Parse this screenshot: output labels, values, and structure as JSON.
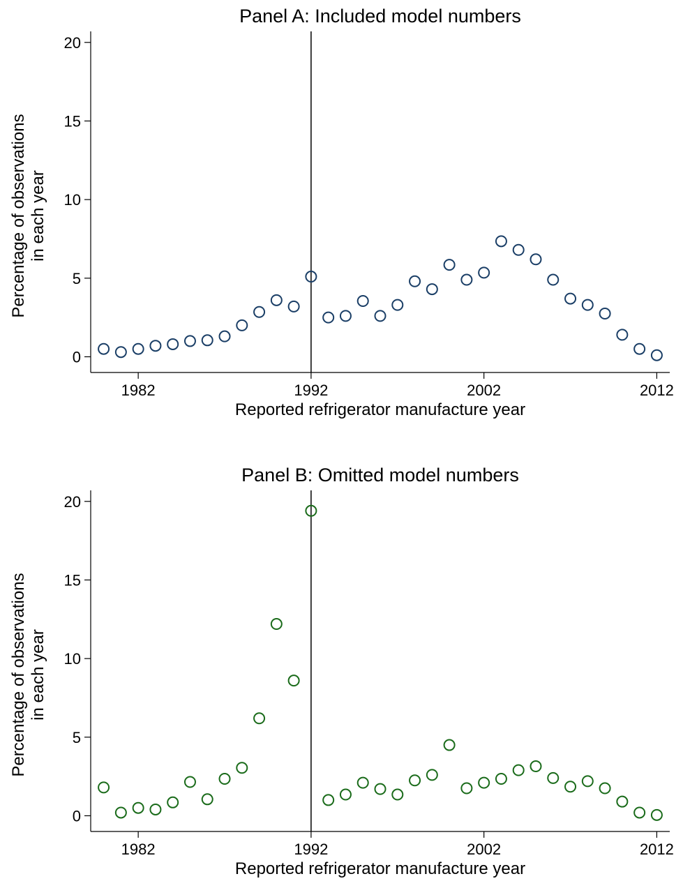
{
  "chart_data": [
    {
      "type": "scatter",
      "title": "Panel A: Included model numbers",
      "xlabel": "Reported refrigerator manufacture year",
      "ylabel_lines": [
        "Percentage of observations",
        "in each year"
      ],
      "xlim": [
        1979.25,
        2012.75
      ],
      "ylim": [
        -1,
        20.7
      ],
      "xticks": [
        1982,
        1992,
        2002,
        2012
      ],
      "xtick_labels": [
        "1982",
        "1992",
        "2002",
        "2012"
      ],
      "yticks": [
        0,
        5,
        10,
        15,
        20
      ],
      "ytick_labels": [
        "0",
        "5",
        "10",
        "15",
        "20"
      ],
      "vline": 1992,
      "grid": false,
      "marker_color": "#1a3e66",
      "x": [
        1980,
        1981,
        1982,
        1983,
        1984,
        1985,
        1986,
        1987,
        1988,
        1989,
        1990,
        1991,
        1992,
        1993,
        1994,
        1995,
        1996,
        1997,
        1998,
        1999,
        2000,
        2001,
        2002,
        2003,
        2004,
        2005,
        2006,
        2007,
        2008,
        2009,
        2010,
        2011,
        2012
      ],
      "y": [
        0.5,
        0.3,
        0.5,
        0.7,
        0.8,
        1.0,
        1.05,
        1.3,
        2.0,
        2.85,
        3.6,
        3.2,
        5.1,
        2.5,
        2.6,
        3.55,
        2.6,
        3.3,
        4.8,
        4.3,
        5.85,
        4.9,
        5.35,
        7.35,
        6.8,
        6.2,
        4.9,
        3.7,
        3.3,
        2.75,
        1.4,
        0.5,
        0.1
      ]
    },
    {
      "type": "scatter",
      "title": "Panel B: Omitted model numbers",
      "xlabel": "Reported refrigerator manufacture year",
      "ylabel_lines": [
        "Percentage of observations",
        "in each year"
      ],
      "xlim": [
        1979.25,
        2012.75
      ],
      "ylim": [
        -1,
        20.7
      ],
      "xticks": [
        1982,
        1992,
        2002,
        2012
      ],
      "xtick_labels": [
        "1982",
        "1992",
        "2002",
        "2012"
      ],
      "yticks": [
        0,
        5,
        10,
        15,
        20
      ],
      "ytick_labels": [
        "0",
        "5",
        "10",
        "15",
        "20"
      ],
      "vline": 1992,
      "grid": false,
      "marker_color": "#1a6b1a",
      "x": [
        1980,
        1981,
        1982,
        1983,
        1984,
        1985,
        1986,
        1987,
        1988,
        1989,
        1990,
        1991,
        1992,
        1993,
        1994,
        1995,
        1996,
        1997,
        1998,
        1999,
        2000,
        2001,
        2002,
        2003,
        2004,
        2005,
        2006,
        2007,
        2008,
        2009,
        2010,
        2011,
        2012
      ],
      "y": [
        1.8,
        0.2,
        0.5,
        0.4,
        0.85,
        2.15,
        1.05,
        2.35,
        3.05,
        6.2,
        12.2,
        8.6,
        19.4,
        1.0,
        1.35,
        2.1,
        1.7,
        1.35,
        2.25,
        2.6,
        4.5,
        1.75,
        2.1,
        2.35,
        2.9,
        3.15,
        2.4,
        1.85,
        2.2,
        1.75,
        0.9,
        0.2,
        0.05
      ]
    }
  ]
}
